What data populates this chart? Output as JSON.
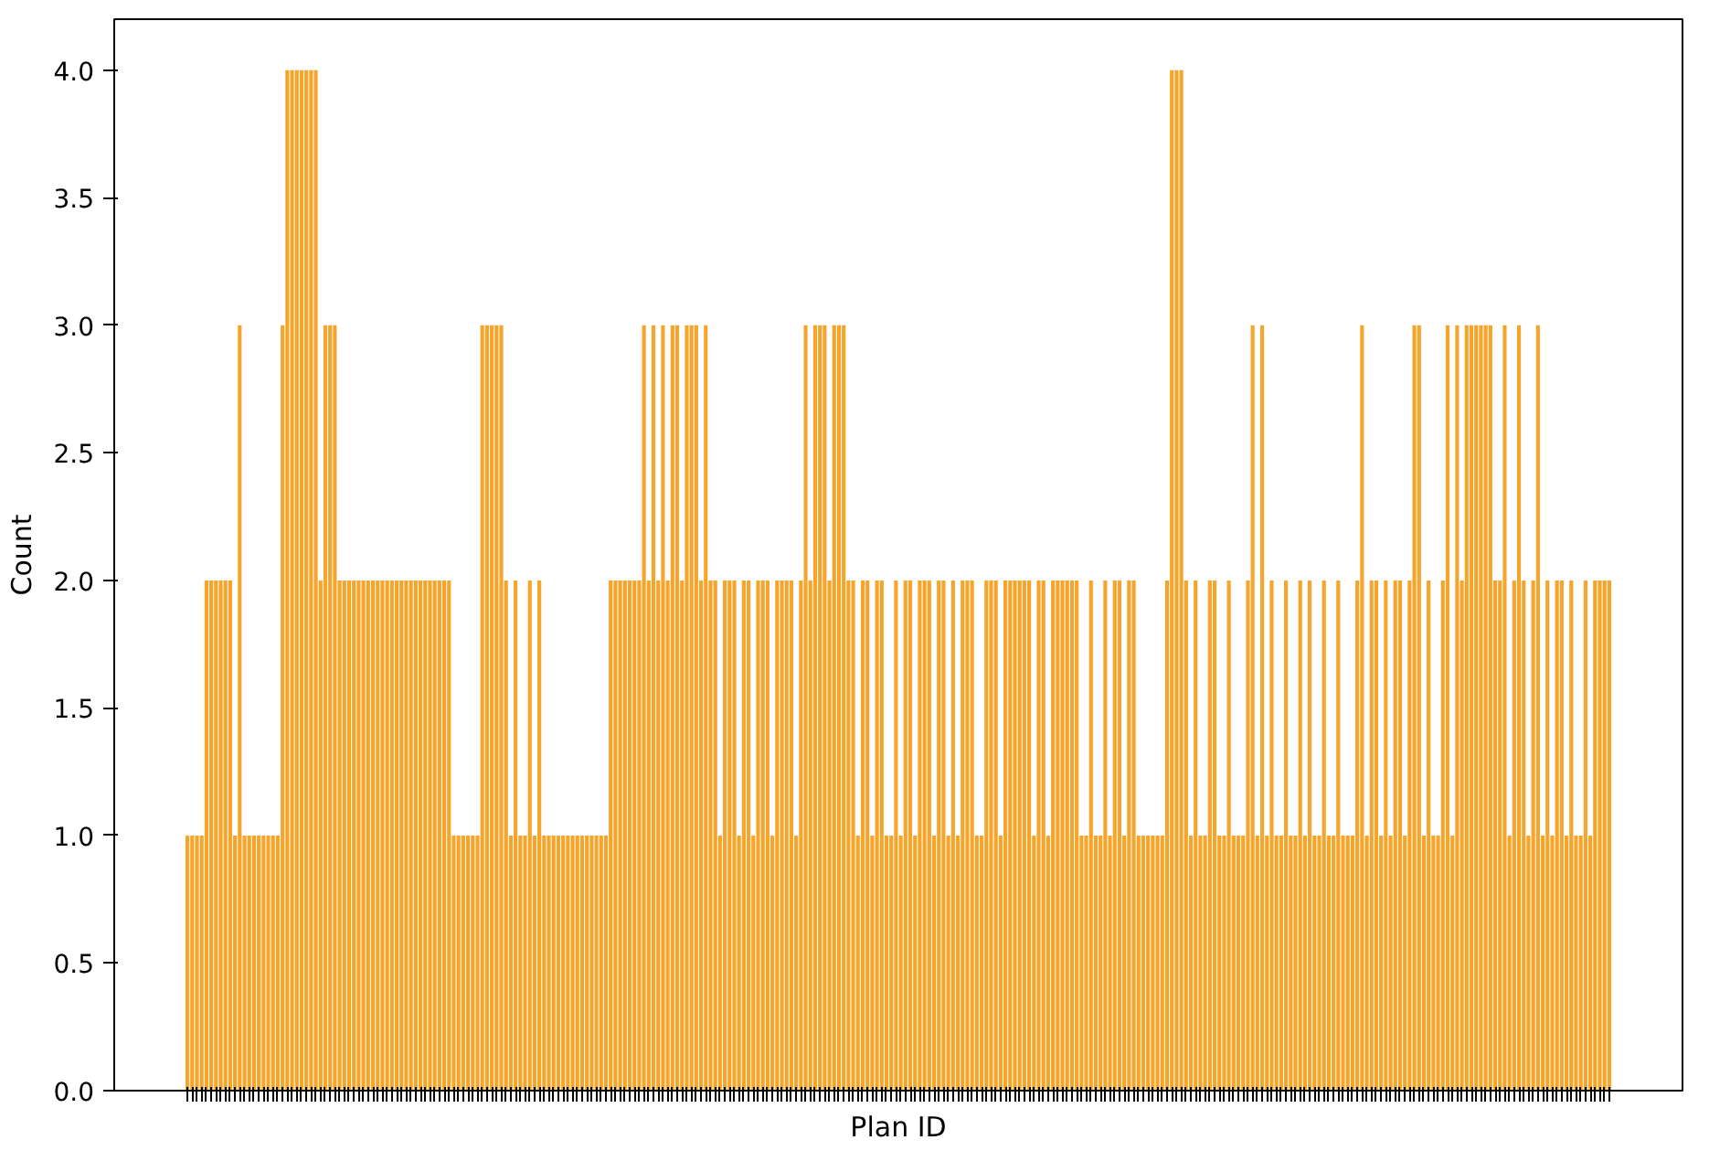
{
  "chart_data": {
    "type": "bar",
    "xlabel": "Plan ID",
    "ylabel": "Count",
    "color": "#f7a52a",
    "categories": [
      null,
      null,
      null,
      null,
      null,
      null,
      null,
      null,
      null,
      null,
      null,
      null,
      null,
      null,
      null,
      null,
      null,
      null,
      null,
      null,
      null,
      null,
      null,
      null,
      null,
      null,
      null,
      null,
      null,
      null,
      null,
      null,
      null,
      null,
      null,
      null,
      null,
      null,
      null,
      null,
      null,
      null,
      null,
      null,
      null,
      null,
      null,
      null,
      null,
      null,
      null,
      null,
      null,
      null,
      null,
      null,
      null,
      null,
      null,
      null,
      null,
      null,
      null,
      null,
      null,
      null,
      null,
      null,
      null,
      null,
      null,
      null,
      null,
      null,
      null,
      null,
      null,
      null,
      null,
      null,
      null,
      null,
      null,
      null,
      null,
      null,
      null,
      null,
      null,
      null,
      null,
      null,
      null,
      null,
      null,
      null,
      null,
      null,
      null,
      null,
      null,
      null,
      null,
      null,
      null,
      null,
      null,
      null,
      null,
      null,
      null,
      null,
      null,
      null,
      null,
      null,
      null,
      null,
      null,
      null,
      null,
      null,
      null,
      null,
      null,
      null,
      null,
      null,
      null,
      null,
      null,
      null,
      null,
      null,
      null,
      null,
      null,
      null,
      null,
      null,
      null,
      null,
      null,
      null,
      null,
      null,
      null,
      null,
      null,
      null,
      null,
      null,
      null,
      null,
      null,
      null,
      null,
      null,
      null,
      null,
      null,
      null,
      null,
      null,
      null,
      null,
      null,
      null,
      null,
      null,
      null,
      null,
      null,
      null,
      null,
      null,
      null,
      null,
      null,
      null,
      null,
      null,
      null,
      null,
      null,
      null,
      null,
      null,
      null,
      null,
      null,
      null,
      null,
      null,
      null,
      null,
      null,
      null,
      null,
      null,
      null,
      null,
      null,
      null,
      null,
      null,
      null,
      null,
      null,
      null,
      null,
      null,
      null,
      null,
      null,
      null,
      null,
      null,
      null,
      null,
      null,
      null,
      null,
      null,
      null,
      null,
      null,
      null,
      null,
      null,
      null,
      null,
      null,
      null,
      null,
      null,
      null,
      null,
      null,
      null,
      null,
      null,
      null,
      null,
      null,
      null,
      null,
      null,
      null,
      null,
      null,
      null,
      null,
      null,
      null,
      null,
      null,
      null,
      null,
      null,
      null,
      null,
      null,
      null,
      null,
      null,
      null,
      null,
      null,
      null,
      null,
      null,
      null,
      null,
      null,
      null,
      null,
      null,
      null,
      null,
      null,
      null,
      null,
      null,
      null,
      null,
      null,
      null,
      null,
      null,
      null,
      null,
      null,
      null,
      null,
      null,
      null,
      null,
      null,
      null
    ],
    "values": [
      1,
      1,
      1,
      1,
      2,
      2,
      2,
      2,
      2,
      2,
      1,
      3,
      1,
      1,
      1,
      1,
      1,
      1,
      1,
      1,
      3,
      4,
      4,
      4,
      4,
      4,
      4,
      4,
      2,
      3,
      3,
      3,
      2,
      2,
      2,
      2,
      2,
      2,
      2,
      2,
      2,
      2,
      2,
      2,
      2,
      2,
      2,
      2,
      2,
      2,
      2,
      2,
      2,
      2,
      2,
      2,
      1,
      1,
      1,
      1,
      1,
      1,
      3,
      3,
      3,
      3,
      3,
      2,
      1,
      2,
      1,
      1,
      2,
      1,
      2,
      1,
      1,
      1,
      1,
      1,
      1,
      1,
      1,
      1,
      1,
      1,
      1,
      1,
      1,
      2,
      2,
      2,
      2,
      2,
      2,
      2,
      3,
      2,
      3,
      2,
      3,
      2,
      3,
      3,
      2,
      3,
      3,
      3,
      2,
      3,
      2,
      2,
      1,
      2,
      2,
      2,
      1,
      2,
      2,
      1,
      2,
      2,
      2,
      1,
      2,
      2,
      2,
      2,
      1,
      2,
      3,
      2,
      3,
      3,
      3,
      2,
      3,
      3,
      3,
      2,
      2,
      1,
      2,
      2,
      1,
      2,
      2,
      1,
      1,
      2,
      1,
      2,
      2,
      1,
      2,
      2,
      2,
      1,
      2,
      2,
      1,
      2,
      1,
      2,
      2,
      2,
      1,
      1,
      2,
      2,
      2,
      1,
      2,
      2,
      2,
      2,
      2,
      2,
      1,
      2,
      2,
      1,
      2,
      2,
      2,
      2,
      2,
      2,
      1,
      1,
      2,
      1,
      1,
      2,
      1,
      2,
      2,
      1,
      2,
      2,
      1,
      1,
      1,
      1,
      1,
      1,
      2,
      4,
      4,
      4,
      2,
      1,
      2,
      1,
      1,
      2,
      2,
      1,
      1,
      2,
      1,
      1,
      1,
      2,
      3,
      1,
      3,
      1,
      2,
      1,
      1,
      2,
      1,
      1,
      2,
      1,
      2,
      1,
      1,
      2,
      1,
      1,
      2,
      1,
      1,
      1,
      2,
      3,
      1,
      2,
      2,
      1,
      2,
      1,
      2,
      2,
      1,
      2,
      3,
      3,
      1,
      2,
      1,
      1,
      2,
      3,
      1,
      3,
      2,
      3,
      3,
      3,
      3,
      3,
      3,
      2,
      2,
      3,
      1,
      2,
      3,
      2,
      1,
      2,
      3,
      1,
      2,
      1,
      2,
      2,
      1,
      2,
      1,
      1,
      2,
      1,
      2,
      2,
      2,
      2
    ],
    "ylim": [
      0,
      4.2
    ],
    "yticks": [
      {
        "value": 0,
        "label": "0.0"
      },
      {
        "value": 0.5,
        "label": "0.5"
      },
      {
        "value": 1,
        "label": "1.0"
      },
      {
        "value": 1.5,
        "label": "1.5"
      },
      {
        "value": 2,
        "label": "2.0"
      },
      {
        "value": 2.5,
        "label": "2.5"
      },
      {
        "value": 3,
        "label": "3.0"
      },
      {
        "value": 3.5,
        "label": "3.5"
      },
      {
        "value": 4,
        "label": "4.0"
      }
    ]
  }
}
